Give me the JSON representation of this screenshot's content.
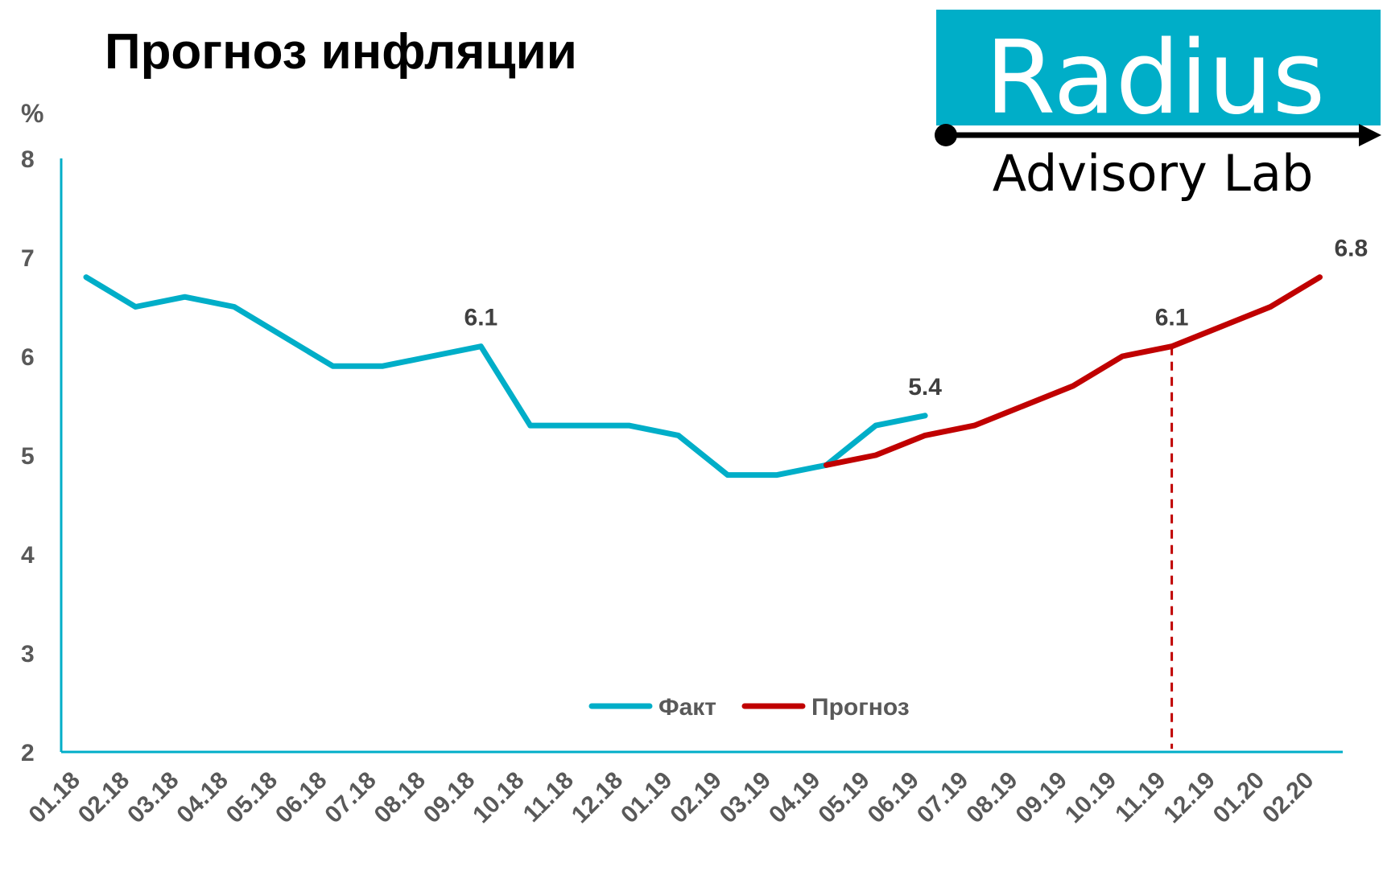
{
  "chart_data": {
    "type": "line",
    "title": "Прогноз инфляции",
    "ylabel": "%",
    "ylim": [
      2,
      8
    ],
    "yticks": [
      "2",
      "3",
      "4",
      "5",
      "6",
      "7",
      "8"
    ],
    "categories": [
      "01.18",
      "02.18",
      "03.18",
      "04.18",
      "05.18",
      "06.18",
      "07.18",
      "08.18",
      "09.18",
      "10.18",
      "11.18",
      "12.18",
      "01.19",
      "02.19",
      "03.19",
      "04.19",
      "05.19",
      "06.19",
      "07.19",
      "08.19",
      "09.19",
      "10.19",
      "11.19",
      "12.19",
      "01.20",
      "02.20"
    ],
    "series": [
      {
        "name": "Факт",
        "color": "#00AEC8",
        "values": [
          6.8,
          6.5,
          6.6,
          6.5,
          6.2,
          5.9,
          5.9,
          6.0,
          6.1,
          5.3,
          5.3,
          5.3,
          5.2,
          4.8,
          4.8,
          4.9,
          5.3,
          5.4,
          null,
          null,
          null,
          null,
          null,
          null,
          null,
          null
        ]
      },
      {
        "name": "Прогноз",
        "color": "#C00000",
        "values": [
          null,
          null,
          null,
          null,
          null,
          null,
          null,
          null,
          null,
          null,
          null,
          null,
          null,
          null,
          null,
          4.9,
          5.0,
          5.2,
          5.3,
          5.5,
          5.7,
          6.0,
          6.1,
          6.3,
          6.5,
          6.8
        ]
      }
    ],
    "data_labels": [
      {
        "series": 0,
        "index": 8,
        "text": "6.1"
      },
      {
        "series": 0,
        "index": 17,
        "text": "5.4"
      },
      {
        "series": 1,
        "index": 22,
        "text": "6.1"
      },
      {
        "series": 1,
        "index": 25,
        "text": "6.8"
      }
    ],
    "reference_line": {
      "category": "11.19",
      "color": "#C00000",
      "style": "dashed"
    },
    "legend": {
      "position": "bottom-center"
    },
    "grid": false
  },
  "logo": {
    "main": "Radius",
    "sub": "Advisory Lab",
    "box_color": "#00AEC8"
  }
}
